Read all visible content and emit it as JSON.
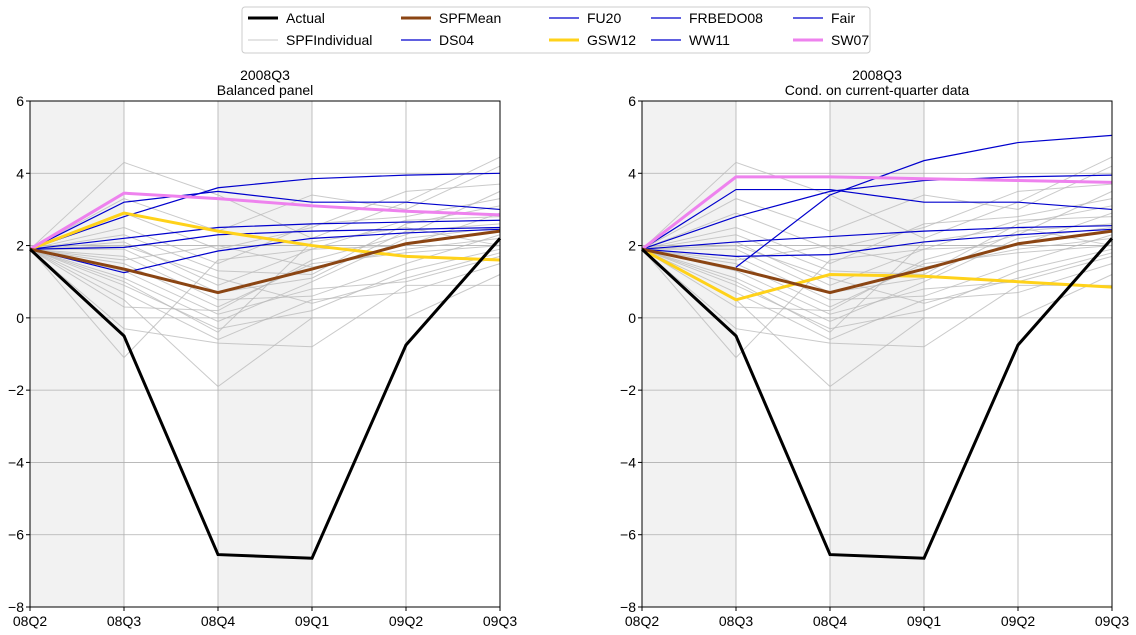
{
  "legend": {
    "items": [
      {
        "name": "Actual",
        "color": "#000000",
        "width": 3
      },
      {
        "name": "SPFIndividual",
        "color": "#c8c8c8",
        "width": 1
      },
      {
        "name": "SPFMean",
        "color": "#8b4513",
        "width": 3
      },
      {
        "name": "DS04",
        "color": "#0000cd",
        "width": 1.2
      },
      {
        "name": "FU20",
        "color": "#0000cd",
        "width": 1.2
      },
      {
        "name": "GSW12",
        "color": "#ffd21a",
        "width": 3
      },
      {
        "name": "FRBEDO08",
        "color": "#0000cd",
        "width": 1.2
      },
      {
        "name": "WW11",
        "color": "#0000cd",
        "width": 1.2
      },
      {
        "name": "Fair",
        "color": "#0000cd",
        "width": 1.2
      },
      {
        "name": "SW07",
        "color": "#ee82ee",
        "width": 3
      }
    ],
    "columns": 5
  },
  "chart_data": [
    {
      "type": "line",
      "title": "2008Q3",
      "subtitle": "Balanced panel",
      "xlabel": "",
      "ylabel": "",
      "categories": [
        "08Q2",
        "08Q3",
        "08Q4",
        "09Q1",
        "09Q2",
        "09Q3"
      ],
      "ylim": [
        -8,
        6
      ],
      "yticks": [
        -8,
        -6,
        -4,
        -2,
        0,
        2,
        4,
        6
      ],
      "grid": true,
      "shaded_x_ranges": [
        [
          0,
          1
        ],
        [
          2,
          3
        ]
      ],
      "shade_color": "#f2f2f2",
      "series": [
        {
          "name": "Actual",
          "values": [
            1.9,
            -0.5,
            -6.55,
            -6.65,
            -0.75,
            2.2
          ]
        },
        {
          "name": "SPFMean",
          "values": [
            1.9,
            1.35,
            0.7,
            1.35,
            2.05,
            2.4
          ]
        },
        {
          "name": "DS04",
          "values": [
            1.9,
            2.8,
            3.6,
            3.85,
            3.95,
            4.0
          ]
        },
        {
          "name": "FU20",
          "values": [
            1.9,
            3.2,
            3.5,
            3.2,
            3.2,
            3.0
          ]
        },
        {
          "name": "GSW12",
          "values": [
            1.9,
            2.9,
            2.4,
            2.0,
            1.7,
            1.6
          ]
        },
        {
          "name": "FRBEDO08",
          "values": [
            1.9,
            1.25,
            1.85,
            2.2,
            2.35,
            2.45
          ]
        },
        {
          "name": "WW11",
          "values": [
            1.9,
            2.2,
            2.5,
            2.6,
            2.65,
            2.7
          ]
        },
        {
          "name": "Fair",
          "values": [
            1.9,
            1.95,
            2.3,
            2.4,
            2.45,
            2.5
          ]
        },
        {
          "name": "SW07",
          "values": [
            1.9,
            3.45,
            3.3,
            3.1,
            2.95,
            2.85
          ]
        }
      ],
      "individual_series": [
        [
          1.9,
          4.3,
          3.4,
          2.2,
          3.2,
          4.45
        ],
        [
          1.9,
          3.3,
          2.4,
          3.4,
          3.0,
          4.2
        ],
        [
          1.9,
          2.9,
          1.9,
          2.5,
          3.5,
          3.7
        ],
        [
          1.9,
          2.5,
          1.5,
          2.6,
          2.8,
          3.3
        ],
        [
          1.9,
          2.3,
          1.3,
          1.2,
          2.6,
          3.1
        ],
        [
          1.9,
          2.1,
          0.9,
          1.9,
          2.0,
          2.9
        ],
        [
          1.9,
          1.9,
          0.7,
          1.1,
          2.4,
          2.6
        ],
        [
          1.9,
          1.7,
          0.5,
          0.6,
          1.5,
          2.3
        ],
        [
          1.9,
          1.5,
          0.3,
          1.5,
          1.8,
          2.0
        ],
        [
          1.9,
          1.3,
          0.1,
          0.8,
          1.0,
          1.7
        ],
        [
          1.9,
          1.1,
          -0.1,
          1.0,
          2.2,
          2.5
        ],
        [
          1.9,
          0.9,
          -0.3,
          0.2,
          1.3,
          1.9
        ],
        [
          1.9,
          0.7,
          -0.6,
          0.5,
          0.7,
          1.5
        ],
        [
          1.9,
          0.5,
          -1.9,
          0.0,
          0.0,
          1.2
        ],
        [
          1.9,
          -0.3,
          -0.7,
          -0.8,
          0.9,
          0.9
        ],
        [
          1.9,
          -1.1,
          1.6,
          1.9,
          2.7,
          2.8
        ],
        [
          1.9,
          1.6,
          2.0,
          1.4,
          1.9,
          2.2
        ],
        [
          1.9,
          2.0,
          1.1,
          0.4,
          1.1,
          1.8
        ],
        [
          1.9,
          0.3,
          0.2,
          1.6,
          2.3,
          3.5
        ],
        [
          1.9,
          1.0,
          -0.4,
          2.1,
          2.5,
          2.0
        ]
      ]
    },
    {
      "type": "line",
      "title": "2008Q3",
      "subtitle": "Cond. on current-quarter data",
      "xlabel": "",
      "ylabel": "",
      "categories": [
        "08Q2",
        "08Q3",
        "08Q4",
        "09Q1",
        "09Q2",
        "09Q3"
      ],
      "ylim": [
        -8,
        6
      ],
      "yticks": [
        -8,
        -6,
        -4,
        -2,
        0,
        2,
        4,
        6
      ],
      "grid": true,
      "shaded_x_ranges": [
        [
          0,
          1
        ],
        [
          2,
          3
        ]
      ],
      "shade_color": "#f2f2f2",
      "series": [
        {
          "name": "Actual",
          "values": [
            1.9,
            -0.5,
            -6.55,
            -6.65,
            -0.75,
            2.2
          ]
        },
        {
          "name": "SPFMean",
          "values": [
            1.9,
            1.35,
            0.7,
            1.35,
            2.05,
            2.4
          ]
        },
        {
          "name": "DS04",
          "values": [
            1.9,
            2.8,
            3.5,
            3.8,
            3.9,
            3.95
          ]
        },
        {
          "name": "FU20",
          "values": [
            null,
            1.4,
            3.4,
            4.35,
            4.85,
            5.05
          ]
        },
        {
          "name": "GSW12",
          "values": [
            1.9,
            0.5,
            1.2,
            1.15,
            1.0,
            0.85
          ]
        },
        {
          "name": "FRBEDO08",
          "values": [
            1.9,
            1.7,
            1.75,
            2.1,
            2.3,
            2.45
          ]
        },
        {
          "name": "WW11",
          "values": [
            1.9,
            3.55,
            3.55,
            3.2,
            3.2,
            3.0
          ]
        },
        {
          "name": "Fair",
          "values": [
            1.9,
            2.1,
            2.25,
            2.4,
            2.5,
            2.55
          ]
        },
        {
          "name": "SW07",
          "values": [
            1.9,
            3.9,
            3.9,
            3.85,
            3.8,
            3.75
          ]
        }
      ],
      "individual_series": [
        [
          1.9,
          4.3,
          3.4,
          2.2,
          3.2,
          4.45
        ],
        [
          1.9,
          3.3,
          2.4,
          3.4,
          3.0,
          4.2
        ],
        [
          1.9,
          2.9,
          1.9,
          2.5,
          3.5,
          3.7
        ],
        [
          1.9,
          2.5,
          1.5,
          2.6,
          2.8,
          3.3
        ],
        [
          1.9,
          2.3,
          1.3,
          1.2,
          2.6,
          3.1
        ],
        [
          1.9,
          2.1,
          0.9,
          1.9,
          2.0,
          2.9
        ],
        [
          1.9,
          1.9,
          0.7,
          1.1,
          2.4,
          2.6
        ],
        [
          1.9,
          1.7,
          0.5,
          0.6,
          1.5,
          2.3
        ],
        [
          1.9,
          1.5,
          0.3,
          1.5,
          1.8,
          2.0
        ],
        [
          1.9,
          1.3,
          0.1,
          0.8,
          1.0,
          1.7
        ],
        [
          1.9,
          1.1,
          -0.1,
          1.0,
          2.2,
          2.5
        ],
        [
          1.9,
          0.9,
          -0.3,
          0.2,
          1.3,
          1.9
        ],
        [
          1.9,
          0.7,
          -0.6,
          0.5,
          0.7,
          1.5
        ],
        [
          1.9,
          0.5,
          -1.9,
          0.0,
          0.0,
          1.2
        ],
        [
          1.9,
          -0.3,
          -0.7,
          -0.8,
          0.9,
          0.9
        ],
        [
          1.9,
          -1.1,
          1.6,
          1.9,
          2.7,
          2.8
        ],
        [
          1.9,
          1.6,
          2.0,
          1.4,
          1.9,
          2.2
        ],
        [
          1.9,
          2.0,
          1.1,
          0.4,
          1.1,
          1.8
        ],
        [
          1.9,
          0.3,
          0.2,
          1.6,
          2.3,
          3.5
        ],
        [
          1.9,
          1.0,
          -0.4,
          2.1,
          2.5,
          2.0
        ]
      ]
    }
  ]
}
